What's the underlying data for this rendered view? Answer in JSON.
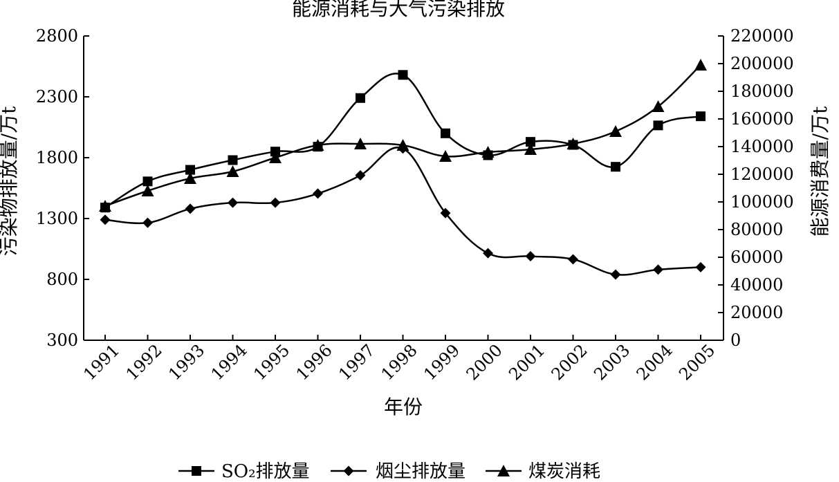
{
  "chart_data": {
    "type": "line",
    "title": "能源消耗与大气污染排放",
    "xlabel": "年份",
    "ylabel_left": "污染物排放量/万t",
    "ylabel_right": "能源消费量/万t",
    "categories": [
      "1991",
      "1992",
      "1993",
      "1994",
      "1995",
      "1996",
      "1997",
      "1998",
      "1999",
      "2000",
      "2001",
      "2002",
      "2003",
      "2004",
      "2005"
    ],
    "y_left": {
      "min": 300,
      "max": 2800,
      "ticks": [
        300,
        800,
        1300,
        1800,
        2300,
        2800
      ]
    },
    "y_right": {
      "min": 0,
      "max": 220000,
      "ticks": [
        0,
        20000,
        40000,
        60000,
        80000,
        100000,
        120000,
        140000,
        160000,
        180000,
        200000,
        220000
      ]
    },
    "grid": false,
    "legend_position": "bottom",
    "series": [
      {
        "name": "SO₂排放量",
        "axis": "left",
        "marker": "square",
        "values": [
          1390,
          1605,
          1700,
          1780,
          1850,
          1890,
          2290,
          2480,
          2000,
          1820,
          1930,
          1905,
          1725,
          2065,
          2140
        ]
      },
      {
        "name": "烟尘排放量",
        "axis": "left",
        "marker": "diamond",
        "values": [
          1290,
          1265,
          1380,
          1430,
          1430,
          1505,
          1655,
          1875,
          1345,
          1015,
          990,
          965,
          840,
          880,
          900
        ]
      },
      {
        "name": "煤炭消耗",
        "axis": "right",
        "marker": "triangle",
        "values": [
          97000,
          108000,
          117000,
          122000,
          132000,
          141000,
          142000,
          141000,
          133000,
          136000,
          138000,
          142000,
          151000,
          169000,
          199000
        ]
      }
    ]
  }
}
